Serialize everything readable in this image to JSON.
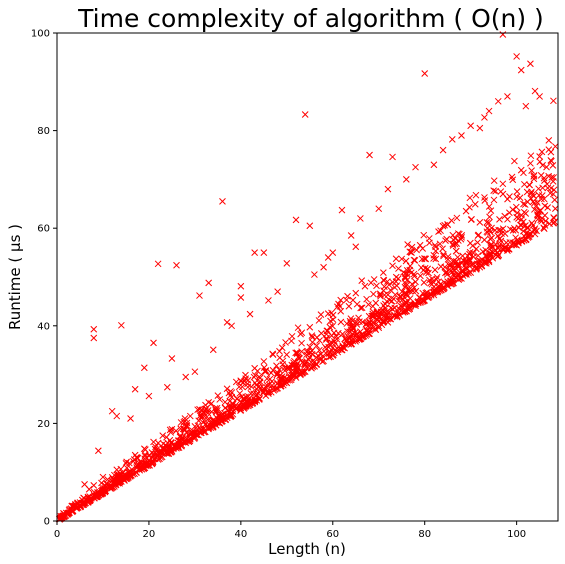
{
  "chart_data": {
    "type": "scatter",
    "title": "Time complexity of algorithm ( O(n) )",
    "xlabel": "Length (n)",
    "ylabel": "Runtime ( μs )",
    "xlim": [
      0,
      109
    ],
    "ylim": [
      0,
      100
    ],
    "xticks": [
      0,
      20,
      40,
      60,
      80,
      100
    ],
    "yticks": [
      0,
      20,
      40,
      60,
      80,
      100
    ],
    "marker": "x",
    "color": "#ff0000",
    "grid": false,
    "legend": "none",
    "trend": {
      "slope": 0.565,
      "intercept": 0.0
    },
    "series": [
      {
        "points": [
          [
            0.5,
            0.4
          ],
          [
            1.5,
            0.9
          ],
          [
            2.5,
            1.5
          ],
          [
            3.5,
            2.1
          ],
          [
            5,
            3.0
          ],
          [
            6,
            3.6
          ],
          [
            7,
            4.2
          ],
          [
            8,
            4.8
          ],
          [
            9,
            5.3
          ],
          [
            10,
            5.8
          ],
          [
            12,
            7.0
          ],
          [
            14,
            8.1
          ],
          [
            16,
            9.3
          ],
          [
            18,
            10.4
          ],
          [
            20,
            11.5
          ],
          [
            22,
            12.6
          ],
          [
            24,
            13.8
          ],
          [
            26,
            14.9
          ],
          [
            28,
            16.0
          ],
          [
            30,
            17.1
          ],
          [
            32,
            18.2
          ],
          [
            34,
            19.4
          ],
          [
            36,
            20.5
          ],
          [
            38,
            21.6
          ],
          [
            40,
            22.7
          ],
          [
            42,
            23.8
          ],
          [
            44,
            24.9
          ],
          [
            46,
            26.1
          ],
          [
            48,
            27.2
          ],
          [
            50,
            28.3
          ],
          [
            52,
            29.4
          ],
          [
            54,
            30.6
          ],
          [
            56,
            31.7
          ],
          [
            58,
            32.8
          ],
          [
            60,
            33.9
          ],
          [
            62,
            35.0
          ],
          [
            64,
            36.2
          ],
          [
            66,
            37.3
          ],
          [
            68,
            38.4
          ],
          [
            70,
            39.6
          ],
          [
            72,
            40.7
          ],
          [
            74,
            41.8
          ],
          [
            76,
            43.0
          ],
          [
            78,
            44.1
          ],
          [
            80,
            45.2
          ],
          [
            82,
            46.3
          ],
          [
            84,
            47.5
          ],
          [
            86,
            48.6
          ],
          [
            88,
            49.7
          ],
          [
            90,
            50.9
          ],
          [
            92,
            52.0
          ],
          [
            94,
            53.1
          ],
          [
            96,
            54.3
          ],
          [
            98,
            55.4
          ],
          [
            100,
            56.5
          ],
          [
            102,
            57.6
          ],
          [
            104,
            58.8
          ],
          [
            106,
            59.9
          ],
          [
            108,
            61.0
          ],
          [
            5,
            3.8
          ],
          [
            7,
            6.5
          ],
          [
            8,
            7.3
          ],
          [
            10,
            9.0
          ],
          [
            11,
            8.5
          ],
          [
            13,
            10.5
          ],
          [
            15,
            11.8
          ],
          [
            17,
            13.5
          ],
          [
            19,
            14.8
          ],
          [
            21,
            16.2
          ],
          [
            23,
            17.5
          ],
          [
            25,
            18.8
          ],
          [
            27,
            20.2
          ],
          [
            29,
            21.5
          ],
          [
            31,
            22.9
          ],
          [
            33,
            24.3
          ],
          [
            35,
            25.7
          ],
          [
            37,
            27.1
          ],
          [
            39,
            28.5
          ],
          [
            41,
            29.9
          ],
          [
            43,
            31.3
          ],
          [
            45,
            32.7
          ],
          [
            47,
            34.1
          ],
          [
            49,
            35.5
          ],
          [
            51,
            36.9
          ],
          [
            53,
            38.3
          ],
          [
            55,
            39.7
          ],
          [
            57,
            41.1
          ],
          [
            59,
            42.5
          ],
          [
            61,
            43.9
          ],
          [
            63,
            45.3
          ],
          [
            65,
            46.7
          ],
          [
            67,
            48.1
          ],
          [
            69,
            49.5
          ],
          [
            71,
            50.9
          ],
          [
            73,
            52.3
          ],
          [
            75,
            53.7
          ],
          [
            77,
            55.1
          ],
          [
            79,
            56.5
          ],
          [
            81,
            57.9
          ],
          [
            83,
            59.3
          ],
          [
            85,
            60.7
          ],
          [
            87,
            62.1
          ],
          [
            89,
            63.5
          ],
          [
            91,
            64.9
          ],
          [
            93,
            66.3
          ],
          [
            95,
            67.7
          ],
          [
            97,
            69.1
          ],
          [
            99,
            70.5
          ],
          [
            101,
            71.9
          ],
          [
            103,
            73.3
          ],
          [
            105,
            74.7
          ],
          [
            107,
            76.1
          ],
          [
            8,
            39.3
          ],
          [
            8,
            37.5
          ],
          [
            14,
            40.1
          ],
          [
            21,
            36.5
          ],
          [
            22,
            52.7
          ],
          [
            25,
            33.3
          ],
          [
            26,
            52.4
          ],
          [
            31,
            46.2
          ],
          [
            33,
            48.8
          ],
          [
            36,
            65.5
          ],
          [
            37,
            40.7
          ],
          [
            40,
            48.1
          ],
          [
            40,
            45.8
          ],
          [
            43,
            55.0
          ],
          [
            45,
            55.0
          ],
          [
            50,
            52.8
          ],
          [
            52,
            61.7
          ],
          [
            54,
            83.3
          ],
          [
            55,
            60.5
          ],
          [
            59,
            54.0
          ],
          [
            62,
            63.7
          ],
          [
            65,
            56.2
          ],
          [
            68,
            75.0
          ],
          [
            73,
            74.6
          ],
          [
            80,
            91.7
          ],
          [
            86,
            78.2
          ],
          [
            93,
            82.7
          ],
          [
            97,
            99.7
          ],
          [
            100,
            95.2
          ],
          [
            101,
            92.4
          ],
          [
            103,
            93.7
          ],
          [
            104,
            88.1
          ],
          [
            108,
            86.1
          ],
          [
            106,
            66.0
          ],
          [
            12,
            22.5
          ],
          [
            17,
            27.0
          ],
          [
            19,
            31.4
          ],
          [
            9,
            14.4
          ],
          [
            6,
            7.5
          ],
          [
            13,
            21.5
          ],
          [
            16,
            21.0
          ],
          [
            20,
            25.6
          ],
          [
            24,
            27.4
          ],
          [
            28,
            29.5
          ],
          [
            30,
            30.6
          ],
          [
            34,
            35.1
          ],
          [
            38,
            40.0
          ],
          [
            42,
            42.4
          ],
          [
            46,
            45.2
          ],
          [
            48,
            47.0
          ],
          [
            56,
            50.5
          ],
          [
            58,
            52.0
          ],
          [
            60,
            55.0
          ],
          [
            64,
            58.5
          ],
          [
            66,
            62.0
          ],
          [
            70,
            64.0
          ],
          [
            72,
            68.0
          ],
          [
            76,
            70.0
          ],
          [
            78,
            72.5
          ],
          [
            82,
            73.0
          ],
          [
            84,
            76.0
          ],
          [
            88,
            79.0
          ],
          [
            90,
            81.0
          ],
          [
            92,
            80.5
          ],
          [
            94,
            84.0
          ],
          [
            96,
            86.0
          ],
          [
            98,
            87.0
          ],
          [
            102,
            85.0
          ],
          [
            105,
            87.0
          ],
          [
            107,
            78.0
          ]
        ]
      }
    ]
  }
}
